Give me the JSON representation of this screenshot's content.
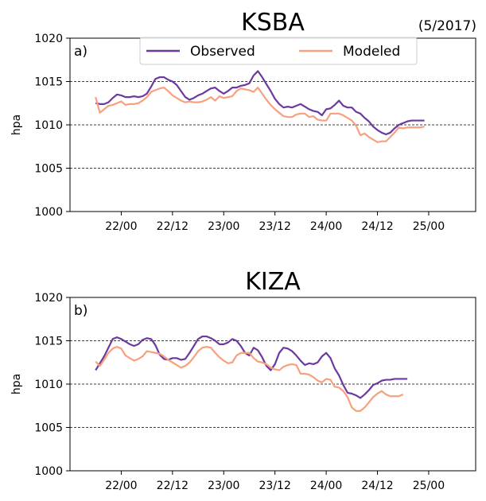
{
  "figure": {
    "date_note": "(5/2017)"
  },
  "legend": {
    "observed": "Observed",
    "modeled": "Modeled"
  },
  "colors": {
    "observed": "#6a3aa0",
    "modeled": "#f8a07e",
    "grid": "#000000"
  },
  "chart_data": [
    {
      "type": "line",
      "title": "KSBA",
      "panel_label": "a)",
      "ylabel": "hpa",
      "ylim": [
        1000,
        1020
      ],
      "yticks": [
        1000,
        1005,
        1010,
        1015,
        1020
      ],
      "xlim": [
        -6,
        89
      ],
      "xticks": [
        {
          "x": 6,
          "label": "22/00"
        },
        {
          "x": 18,
          "label": "22/12"
        },
        {
          "x": 30,
          "label": "23/00"
        },
        {
          "x": 42,
          "label": "23/12"
        },
        {
          "x": 54,
          "label": "24/00"
        },
        {
          "x": 66,
          "label": "24/12"
        },
        {
          "x": 78,
          "label": "25/00"
        }
      ],
      "grid": "horizontal dashed at 1005, 1010, 1015",
      "legend_position": "top-center",
      "series": [
        {
          "name": "Observed",
          "color_key": "observed",
          "values": [
            1012.5,
            1012.4,
            1012.4,
            1012.6,
            1013.1,
            1013.5,
            1013.4,
            1013.2,
            1013.2,
            1013.3,
            1013.2,
            1013.3,
            1013.6,
            1014.4,
            1015.3,
            1015.5,
            1015.5,
            1015.2,
            1015.0,
            1014.6,
            1013.9,
            1013.2,
            1012.9,
            1013.1,
            1013.4,
            1013.6,
            1013.9,
            1014.2,
            1014.3,
            1013.9,
            1013.6,
            1013.9,
            1014.3,
            1014.3,
            1014.5,
            1014.6,
            1014.8,
            1015.7,
            1016.2,
            1015.5,
            1014.7,
            1013.9,
            1013.0,
            1012.4,
            1012.0,
            1012.1,
            1012.0,
            1012.2,
            1012.4,
            1012.1,
            1011.8,
            1011.6,
            1011.5,
            1011.1,
            1011.8,
            1011.9,
            1012.3,
            1012.8,
            1012.2,
            1012.0,
            1012.0,
            1011.5,
            1011.3,
            1010.8,
            1010.4,
            1009.8,
            1009.4,
            1009.1,
            1008.9,
            1009.1,
            1009.6,
            1010.0,
            1010.2,
            1010.4,
            1010.5,
            1010.5,
            1010.5,
            1010.5
          ]
        },
        {
          "name": "Modeled",
          "color_key": "modeled",
          "values": [
            1013.2,
            1011.4,
            1011.8,
            1012.2,
            1012.3,
            1012.5,
            1012.7,
            1012.3,
            1012.4,
            1012.4,
            1012.5,
            1012.8,
            1013.2,
            1013.8,
            1014.0,
            1014.2,
            1014.3,
            1013.9,
            1013.4,
            1013.1,
            1012.8,
            1012.6,
            1012.7,
            1012.6,
            1012.6,
            1012.7,
            1012.9,
            1013.2,
            1012.8,
            1013.3,
            1013.1,
            1013.2,
            1013.3,
            1013.9,
            1014.2,
            1014.1,
            1014.0,
            1013.8,
            1014.3,
            1013.6,
            1012.9,
            1012.3,
            1011.8,
            1011.4,
            1011.0,
            1010.9,
            1010.9,
            1011.2,
            1011.3,
            1011.3,
            1010.9,
            1011.0,
            1010.6,
            1010.5,
            1010.5,
            1011.3,
            1011.3,
            1011.3,
            1011.1,
            1010.8,
            1010.5,
            1009.9,
            1008.8,
            1009.0,
            1008.6,
            1008.3,
            1008.0,
            1008.1,
            1008.1,
            1008.6,
            1009.1,
            1009.7,
            1009.6,
            1009.7,
            1009.7,
            1009.7,
            1009.7,
            1009.8
          ]
        }
      ]
    },
    {
      "type": "line",
      "title": "KIZA",
      "panel_label": "b)",
      "ylabel": "hpa",
      "ylim": [
        1000,
        1020
      ],
      "yticks": [
        1000,
        1005,
        1010,
        1015,
        1020
      ],
      "xlim": [
        -6,
        89
      ],
      "xticks": [
        {
          "x": 6,
          "label": "22/00"
        },
        {
          "x": 18,
          "label": "22/12"
        },
        {
          "x": 30,
          "label": "23/00"
        },
        {
          "x": 42,
          "label": "23/12"
        },
        {
          "x": 54,
          "label": "24/00"
        },
        {
          "x": 66,
          "label": "24/12"
        },
        {
          "x": 78,
          "label": "25/00"
        }
      ],
      "grid": "horizontal dashed at 1005, 1010, 1015",
      "legend_position": "none",
      "series": [
        {
          "name": "Observed",
          "color_key": "observed",
          "values": [
            1011.6,
            1012.4,
            1013.2,
            1014.2,
            1015.2,
            1015.4,
            1015.2,
            1014.9,
            1014.6,
            1014.4,
            1014.6,
            1015.1,
            1015.3,
            1015.2,
            1014.5,
            1013.4,
            1012.9,
            1012.8,
            1013.0,
            1013.0,
            1012.8,
            1012.9,
            1013.6,
            1014.4,
            1015.2,
            1015.5,
            1015.5,
            1015.3,
            1015.0,
            1014.6,
            1014.6,
            1014.8,
            1015.2,
            1015.0,
            1014.4,
            1013.6,
            1013.3,
            1014.2,
            1013.9,
            1013.1,
            1012.1,
            1011.6,
            1012.3,
            1013.6,
            1014.2,
            1014.1,
            1013.8,
            1013.3,
            1012.7,
            1012.2,
            1012.4,
            1012.3,
            1012.5,
            1013.2,
            1013.6,
            1013.0,
            1011.8,
            1011.0,
            1009.9,
            1009.0,
            1008.9,
            1008.7,
            1008.4,
            1008.8,
            1009.3,
            1009.9,
            1010.1,
            1010.4,
            1010.5,
            1010.5,
            1010.6,
            1010.6,
            1010.6,
            1010.6
          ]
        },
        {
          "name": "Modeled",
          "color_key": "modeled",
          "values": [
            1012.6,
            1012.1,
            1012.8,
            1013.6,
            1014.1,
            1014.3,
            1014.1,
            1013.3,
            1013.0,
            1012.7,
            1012.9,
            1013.2,
            1013.8,
            1013.7,
            1013.6,
            1013.5,
            1013.2,
            1012.8,
            1012.5,
            1012.2,
            1011.9,
            1012.1,
            1012.5,
            1013.1,
            1013.8,
            1014.2,
            1014.3,
            1014.2,
            1013.6,
            1013.1,
            1012.7,
            1012.4,
            1012.5,
            1013.3,
            1013.6,
            1013.6,
            1013.6,
            1013.0,
            1012.6,
            1012.5,
            1012.3,
            1011.9,
            1011.7,
            1011.6,
            1012.0,
            1012.2,
            1012.3,
            1012.2,
            1011.2,
            1011.2,
            1011.1,
            1010.8,
            1010.4,
            1010.2,
            1010.6,
            1010.5,
            1009.7,
            1009.6,
            1009.2,
            1008.5,
            1007.3,
            1006.9,
            1006.9,
            1007.3,
            1007.9,
            1008.5,
            1008.9,
            1009.2,
            1008.8,
            1008.6,
            1008.6,
            1008.6,
            1008.8
          ]
        }
      ]
    }
  ]
}
